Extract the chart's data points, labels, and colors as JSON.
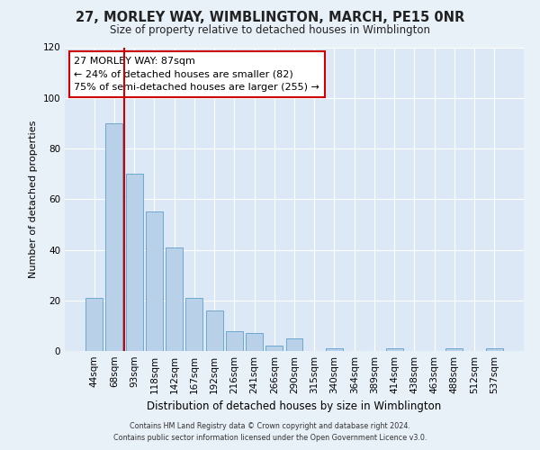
{
  "title": "27, MORLEY WAY, WIMBLINGTON, MARCH, PE15 0NR",
  "subtitle": "Size of property relative to detached houses in Wimblington",
  "xlabel": "Distribution of detached houses by size in Wimblington",
  "ylabel": "Number of detached properties",
  "bar_labels": [
    "44sqm",
    "68sqm",
    "93sqm",
    "118sqm",
    "142sqm",
    "167sqm",
    "192sqm",
    "216sqm",
    "241sqm",
    "266sqm",
    "290sqm",
    "315sqm",
    "340sqm",
    "364sqm",
    "389sqm",
    "414sqm",
    "438sqm",
    "463sqm",
    "488sqm",
    "512sqm",
    "537sqm"
  ],
  "bar_values": [
    21,
    90,
    70,
    55,
    41,
    21,
    16,
    8,
    7,
    2,
    5,
    0,
    1,
    0,
    0,
    1,
    0,
    0,
    1,
    0,
    1
  ],
  "bar_color": "#b8d0e8",
  "bar_edge_color": "#6ea8d0",
  "vline_color": "#cc0000",
  "annotation_title": "27 MORLEY WAY: 87sqm",
  "annotation_line1": "← 24% of detached houses are smaller (82)",
  "annotation_line2": "75% of semi-detached houses are larger (255) →",
  "annotation_box_color": "#ffffff",
  "annotation_box_edge": "#cc0000",
  "ylim": [
    0,
    120
  ],
  "yticks": [
    0,
    20,
    40,
    60,
    80,
    100,
    120
  ],
  "footnote1": "Contains HM Land Registry data © Crown copyright and database right 2024.",
  "footnote2": "Contains public sector information licensed under the Open Government Licence v3.0.",
  "bg_color": "#e8f0f8",
  "plot_bg_color": "#dce8f5"
}
